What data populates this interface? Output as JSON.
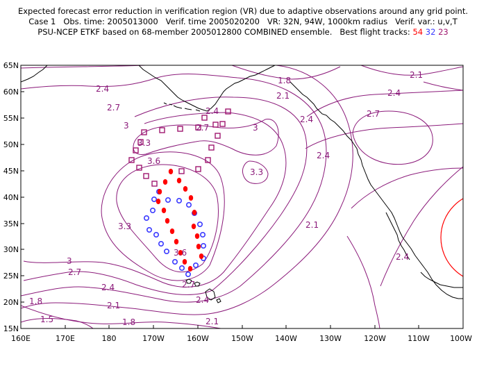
{
  "header": {
    "line1": "Expected forecast error reduction in verification region (VR) due to adaptive observations around any grid point.",
    "line2": "Case 1   Obs. time: 2005013000   Verif. time 2005020200   VR: 32N, 94W, 1000km radius   Verif. var.: u,v,T",
    "line3_prefix": "PSU-NCEP ETKF based on 68-member 2005012800 COMBINED ensemble.   Best flight tracks:",
    "track_red": "54",
    "track_blue": "32",
    "track_purple": "23"
  },
  "colors": {
    "contour": "#8b1a7a",
    "track_red": "#ff0000",
    "track_blue": "#3a3aff",
    "track_purple": "#a01870",
    "vr_circle": "#ff0000",
    "coast": "#000000"
  },
  "axes": {
    "x_ticks": [
      "160E",
      "170E",
      "180",
      "170W",
      "160W",
      "150W",
      "140W",
      "130W",
      "120W",
      "110W",
      "100W"
    ],
    "y_ticks": [
      "65N",
      "60N",
      "55N",
      "50N",
      "45N",
      "40N",
      "35N",
      "30N",
      "25N",
      "20N",
      "15N"
    ]
  },
  "contour_labels": [
    "1.5",
    "1.8",
    "2.1",
    "2.4",
    "2.7",
    "3",
    "3.3",
    "3.6"
  ]
}
